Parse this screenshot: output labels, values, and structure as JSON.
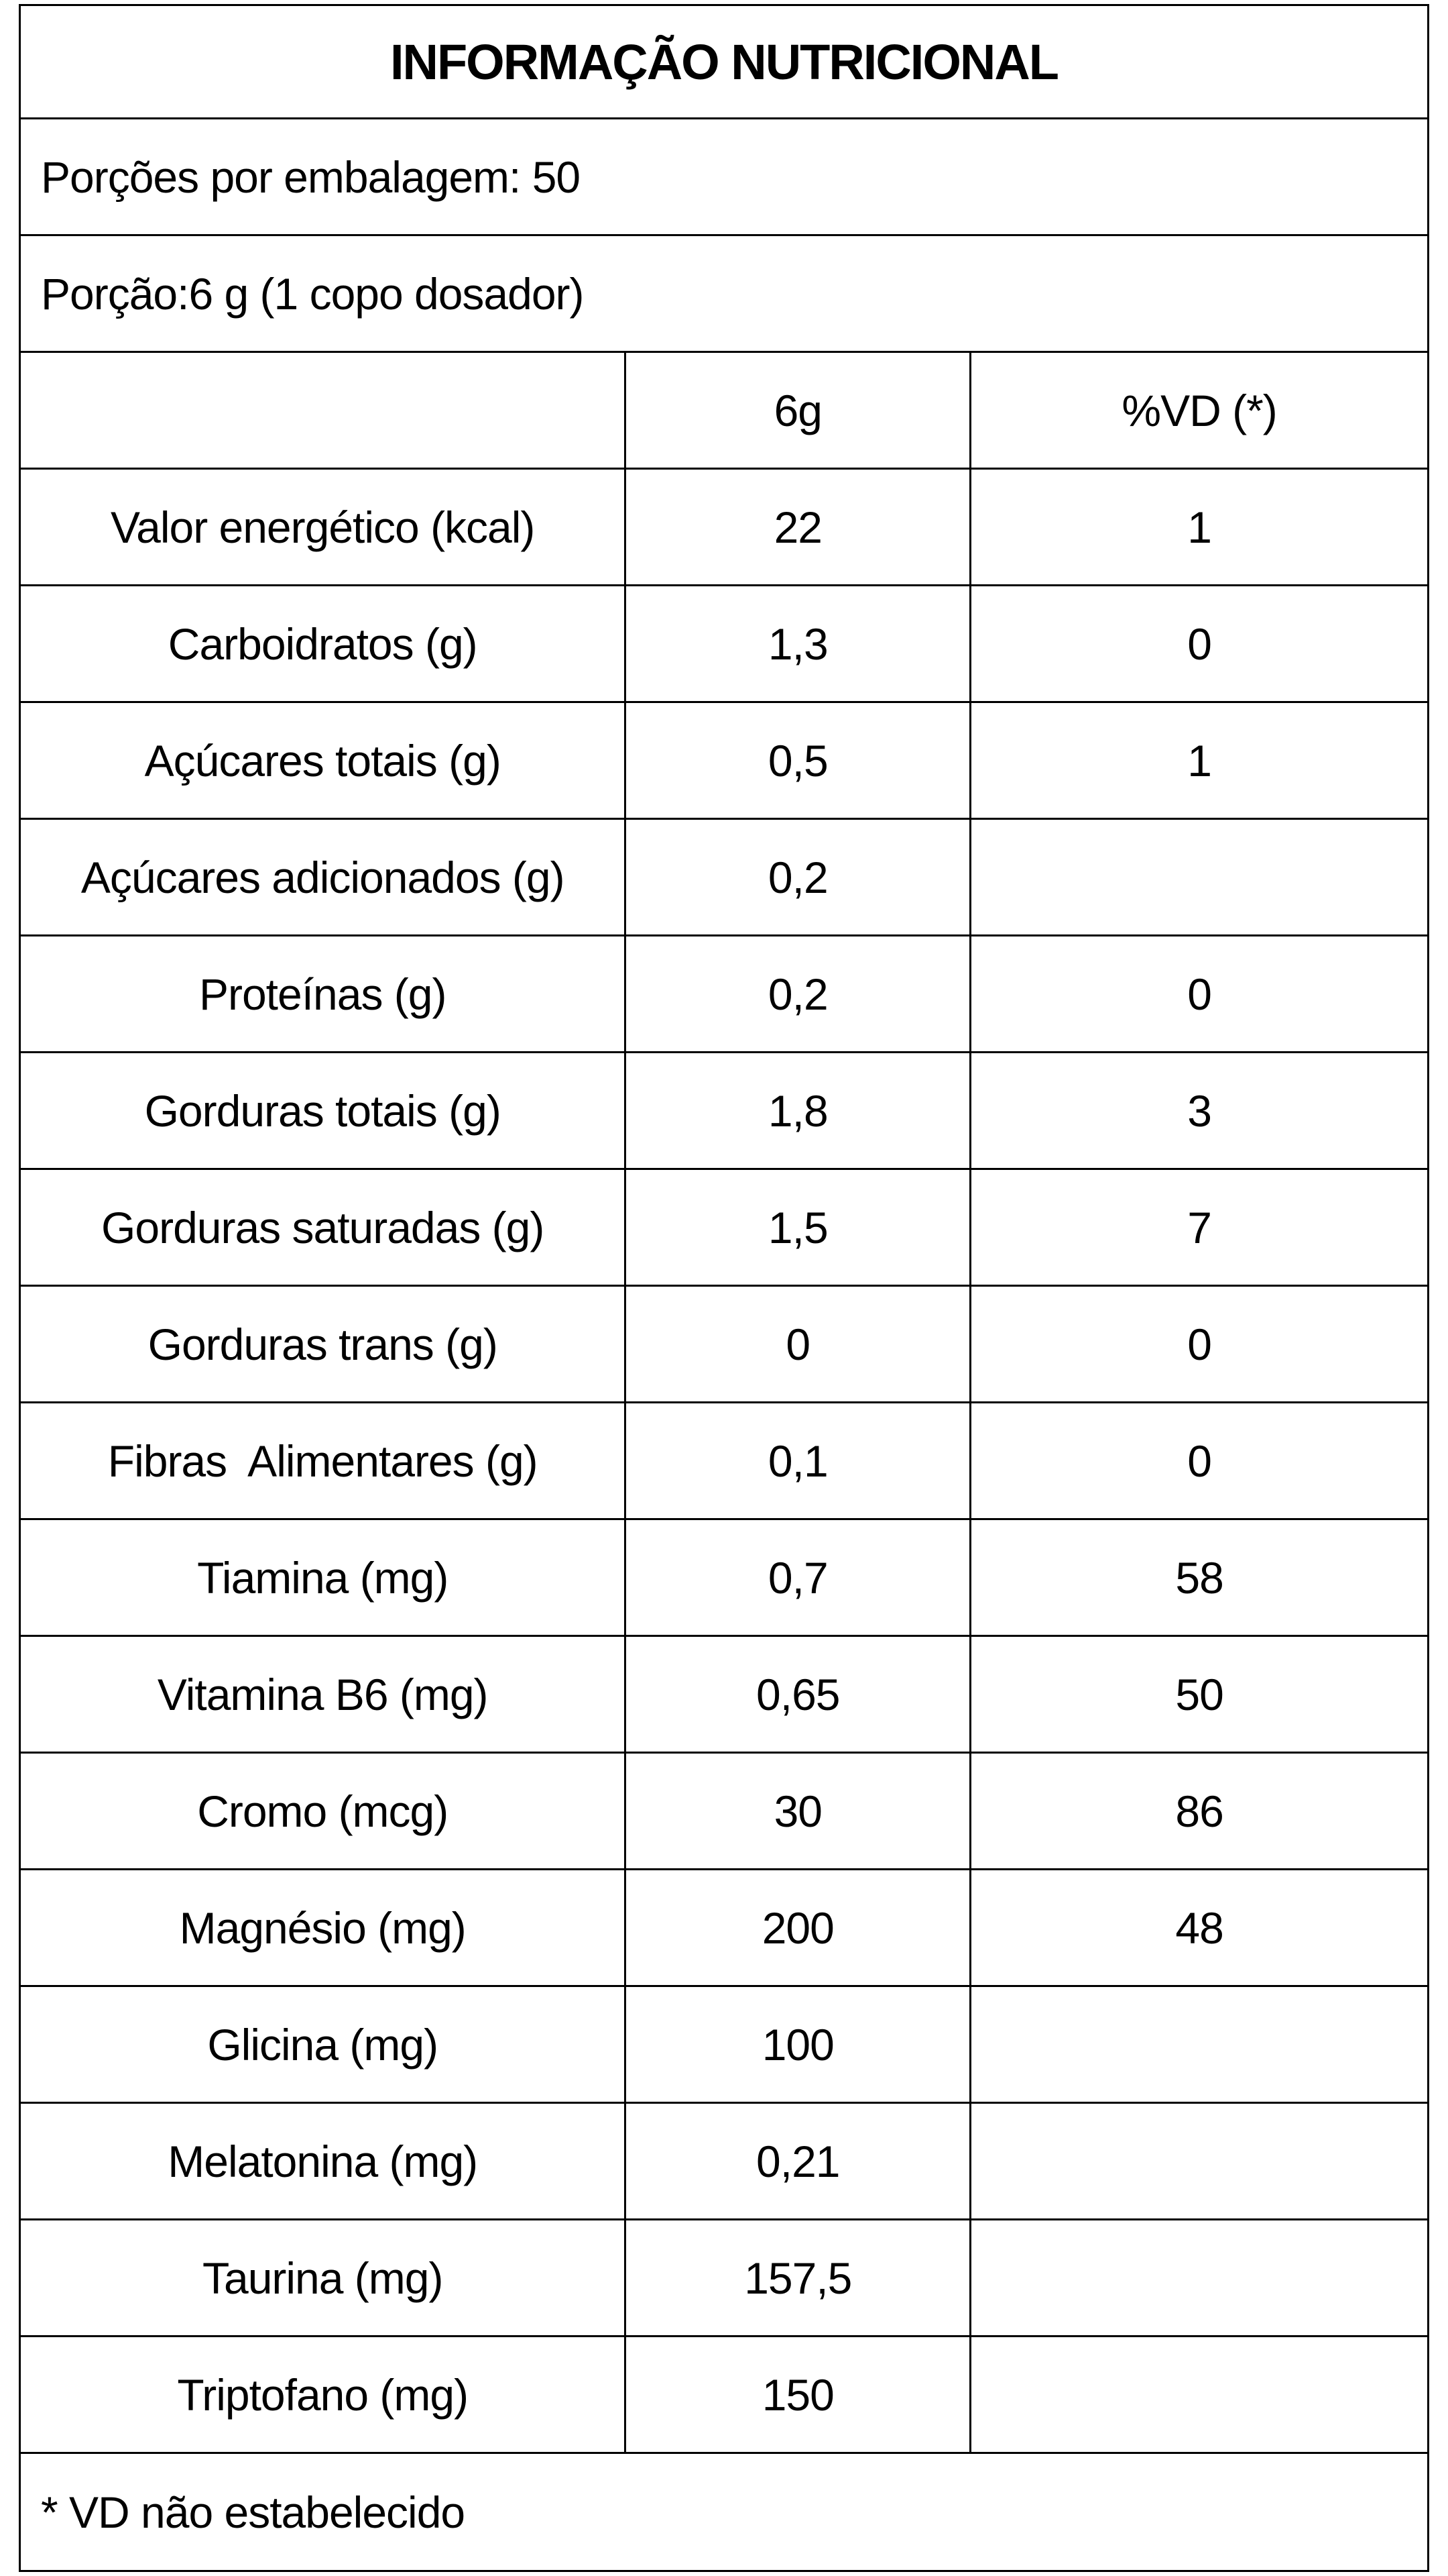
{
  "nutrition": {
    "title": "INFORMAÇÃO NUTRICIONAL",
    "servings_line": "Porções por embalagem: 50",
    "portion_line": "Porção:6 g (1 copo dosador)",
    "columns": {
      "amount": "6g",
      "dv": "%VD (*)"
    },
    "rows": [
      {
        "label": "Valor energético (kcal)",
        "amount": "22",
        "dv": "1"
      },
      {
        "label": "Carboidratos (g)",
        "amount": "1,3",
        "dv": "0"
      },
      {
        "label": "Açúcares totais (g)",
        "amount": "0,5",
        "dv": "1"
      },
      {
        "label": "Açúcares adicionados (g)",
        "amount": "0,2",
        "dv": ""
      },
      {
        "label": "Proteínas (g)",
        "amount": "0,2",
        "dv": "0"
      },
      {
        "label": "Gorduras totais (g)",
        "amount": "1,8",
        "dv": "3"
      },
      {
        "label": "Gorduras saturadas (g)",
        "amount": "1,5",
        "dv": "7"
      },
      {
        "label": "Gorduras trans (g)",
        "amount": "0",
        "dv": "0"
      },
      {
        "label": "Fibras  Alimentares (g)",
        "amount": "0,1",
        "dv": "0"
      },
      {
        "label": "Tiamina (mg)",
        "amount": "0,7",
        "dv": "58"
      },
      {
        "label": "Vitamina B6 (mg)",
        "amount": "0,65",
        "dv": "50"
      },
      {
        "label": "Cromo (mcg)",
        "amount": "30",
        "dv": "86"
      },
      {
        "label": "Magnésio (mg)",
        "amount": "200",
        "dv": "48"
      },
      {
        "label": "Glicina (mg)",
        "amount": "100",
        "dv": ""
      },
      {
        "label": "Melatonina (mg)",
        "amount": "0,21",
        "dv": ""
      },
      {
        "label": "Taurina (mg)",
        "amount": "157,5",
        "dv": ""
      },
      {
        "label": "Triptofano (mg)",
        "amount": "150",
        "dv": ""
      }
    ],
    "footnote": "* VD não estabelecido",
    "colors": {
      "background": "#ffffff",
      "border": "#000000",
      "text": "#000000"
    }
  }
}
